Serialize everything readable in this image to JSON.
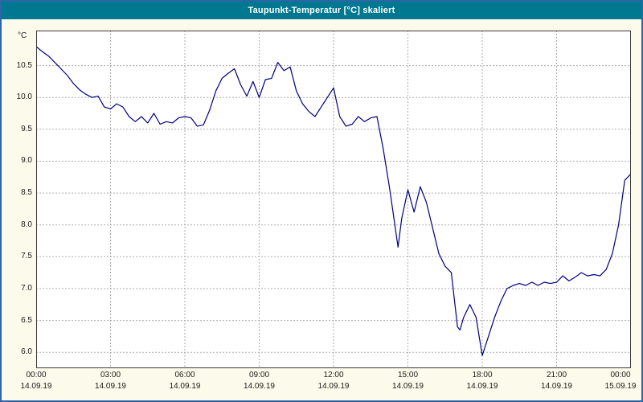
{
  "window": {
    "title": "Taupunkt-Temperatur [°C] skaliert"
  },
  "colors": {
    "titlebar_bg": "#00788F",
    "window_border": "#2E64A8",
    "background": "#FCFAEA",
    "plot_bg": "#FFFFFF",
    "grid": "#ADADAD",
    "line": "#00007F",
    "text": "#1B1B1B"
  },
  "chart_data": {
    "type": "line",
    "title": "Taupunkt-Temperatur [°C] skaliert",
    "xlabel": "",
    "ylabel": "°C",
    "grid": true,
    "legend": "none",
    "ylim": [
      5.75,
      11.05
    ],
    "xlim_hours": [
      0,
      24
    ],
    "y_ticks": [
      6.0,
      6.5,
      7.0,
      7.5,
      8.0,
      8.5,
      9.0,
      9.5,
      10.0,
      10.5
    ],
    "x_ticks": [
      {
        "hour": 0,
        "time": "00:00",
        "date": "14.09.19"
      },
      {
        "hour": 3,
        "time": "03:00",
        "date": "14.09.19"
      },
      {
        "hour": 6,
        "time": "06:00",
        "date": "14.09.19"
      },
      {
        "hour": 9,
        "time": "09:00",
        "date": "14.09.19"
      },
      {
        "hour": 12,
        "time": "12:00",
        "date": "14.09.19"
      },
      {
        "hour": 15,
        "time": "15:00",
        "date": "14.09.19"
      },
      {
        "hour": 18,
        "time": "18:00",
        "date": "14.09.19"
      },
      {
        "hour": 21,
        "time": "21:00",
        "date": "14.09.19"
      },
      {
        "hour": 24,
        "time": "00:00",
        "date": "15.09.19"
      }
    ],
    "series": [
      {
        "name": "Taupunkt-Temperatur",
        "x": [
          0,
          0.25,
          0.5,
          0.75,
          1,
          1.25,
          1.5,
          1.75,
          2,
          2.25,
          2.5,
          2.75,
          3,
          3.25,
          3.5,
          3.75,
          4,
          4.25,
          4.5,
          4.75,
          5,
          5.25,
          5.5,
          5.75,
          6,
          6.25,
          6.5,
          6.75,
          7,
          7.25,
          7.5,
          7.75,
          8,
          8.25,
          8.5,
          8.75,
          9,
          9.25,
          9.5,
          9.75,
          10,
          10.25,
          10.5,
          10.75,
          11,
          11.25,
          11.5,
          11.75,
          12,
          12.25,
          12.5,
          12.75,
          13,
          13.25,
          13.5,
          13.75,
          14,
          14.25,
          14.4,
          14.6,
          14.75,
          15,
          15.25,
          15.5,
          15.75,
          16,
          16.25,
          16.5,
          16.75,
          17,
          17.1,
          17.25,
          17.5,
          17.75,
          18,
          18.25,
          18.5,
          18.75,
          19,
          19.25,
          19.5,
          19.75,
          20,
          20.25,
          20.5,
          20.75,
          21,
          21.25,
          21.5,
          21.75,
          22,
          22.25,
          22.5,
          22.75,
          23,
          23.25,
          23.5,
          23.75,
          24
        ],
        "y": [
          10.8,
          10.72,
          10.65,
          10.55,
          10.45,
          10.35,
          10.22,
          10.12,
          10.05,
          10.0,
          10.02,
          9.85,
          9.82,
          9.9,
          9.85,
          9.7,
          9.62,
          9.7,
          9.6,
          9.75,
          9.58,
          9.62,
          9.6,
          9.68,
          9.7,
          9.68,
          9.55,
          9.57,
          9.8,
          10.1,
          10.3,
          10.38,
          10.45,
          10.2,
          10.02,
          10.25,
          10.0,
          10.28,
          10.3,
          10.55,
          10.42,
          10.48,
          10.1,
          9.9,
          9.78,
          9.7,
          9.85,
          10.0,
          10.15,
          9.7,
          9.55,
          9.58,
          9.7,
          9.62,
          9.68,
          9.7,
          9.2,
          8.6,
          8.2,
          7.65,
          8.1,
          8.55,
          8.2,
          8.6,
          8.35,
          7.95,
          7.55,
          7.35,
          7.25,
          6.4,
          6.35,
          6.55,
          6.75,
          6.55,
          5.95,
          6.25,
          6.55,
          6.8,
          7.0,
          7.05,
          7.08,
          7.05,
          7.1,
          7.05,
          7.1,
          7.08,
          7.1,
          7.2,
          7.12,
          7.18,
          7.25,
          7.2,
          7.22,
          7.2,
          7.3,
          7.55,
          8.0,
          8.7,
          8.8
        ]
      }
    ]
  }
}
